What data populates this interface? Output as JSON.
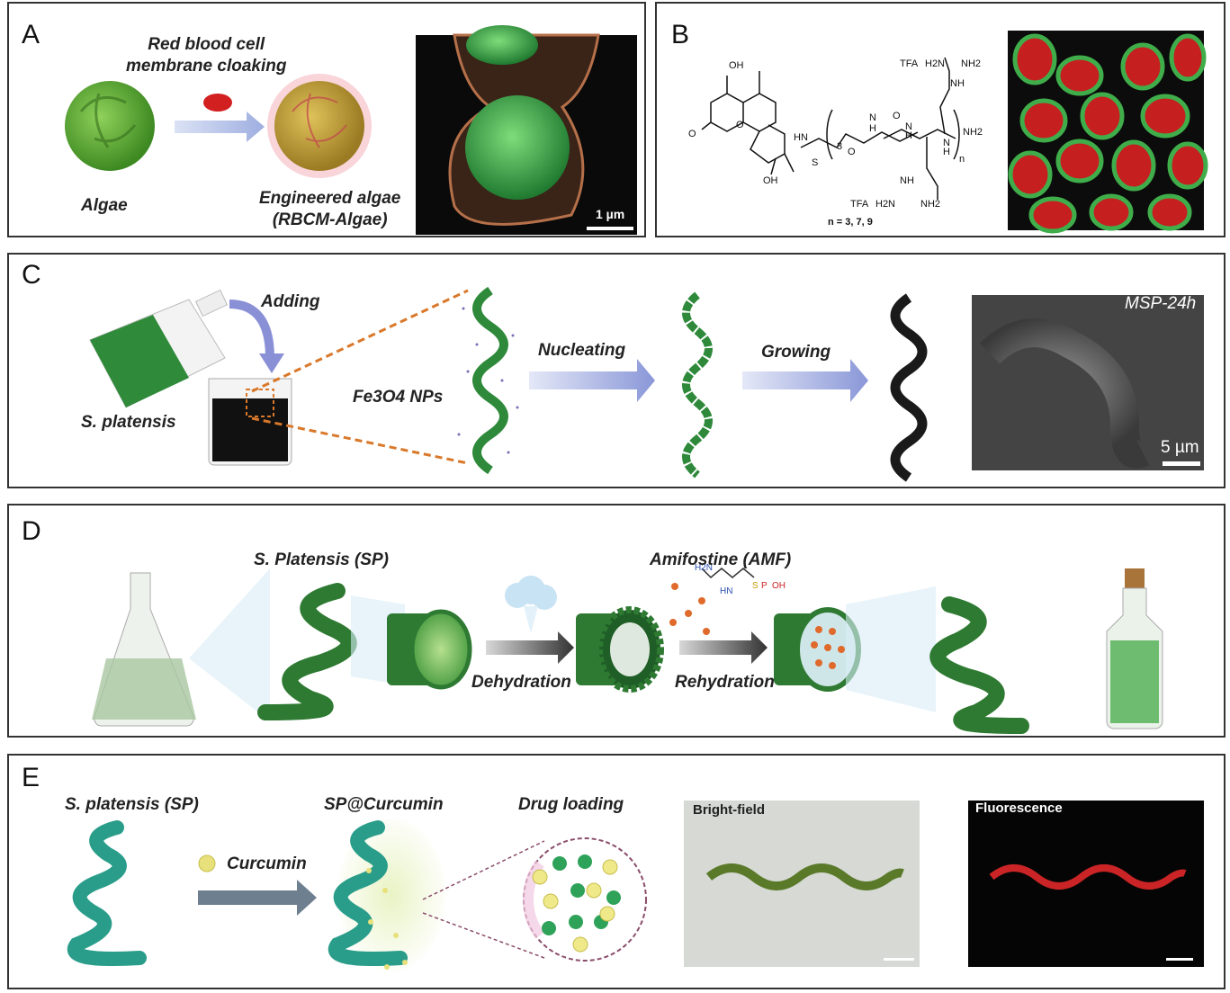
{
  "panels": {
    "A": {
      "letter": "A",
      "algae_label": "Algae",
      "process_label": "Red blood cell\nmembrane cloaking",
      "engineered_label": "Engineered algae\n(RBCM-Algae)",
      "scale_bar": "1 µm"
    },
    "B": {
      "letter": "B",
      "formula_note": "n = 3, 7, 9",
      "chem_labels": [
        "OH",
        "O",
        "O",
        "OH",
        "HN",
        "S",
        "N",
        "H",
        "H",
        "N",
        "O",
        "O",
        "N",
        "H",
        "NH2",
        "TFA",
        "H2N",
        "NH2",
        "NH",
        "TFA",
        "H2N",
        "NH2",
        "NH",
        "3",
        "n"
      ]
    },
    "C": {
      "letter": "C",
      "adding_label": "Adding",
      "species_label": "S. platensis",
      "np_label": "Fe3O4 NPs",
      "nucleating_label": "Nucleating",
      "growing_label": "Growing",
      "sem_label": "MSP-24h",
      "scale_bar": "5 µm"
    },
    "D": {
      "letter": "D",
      "sp_label": "S. Platensis (SP)",
      "amf_label": "Amifostine (AMF)",
      "dehydration_label": "Dehydration",
      "rehydration_label": "Rehydration"
    },
    "E": {
      "letter": "E",
      "sp_label": "S. platensis (SP)",
      "curcumin_label": "Curcumin",
      "sp_curcumin_label": "SP@Curcumin",
      "drug_loading_label": "Drug loading",
      "bright_field_label": "Bright-field",
      "fluorescence_label": "Fluorescence"
    }
  },
  "colors": {
    "algae_green": "#5aa832",
    "spirulina_green": "#2e8a3a",
    "teal": "#2a9d8a",
    "rbc_red": "#d21f1f",
    "arrow_blue": "#8f99d6",
    "arrow_gray": "#6e7f90",
    "particle_orange": "#e06a2c",
    "curcumin_yellow": "#e8e07a",
    "sem_bg": "#111111"
  }
}
